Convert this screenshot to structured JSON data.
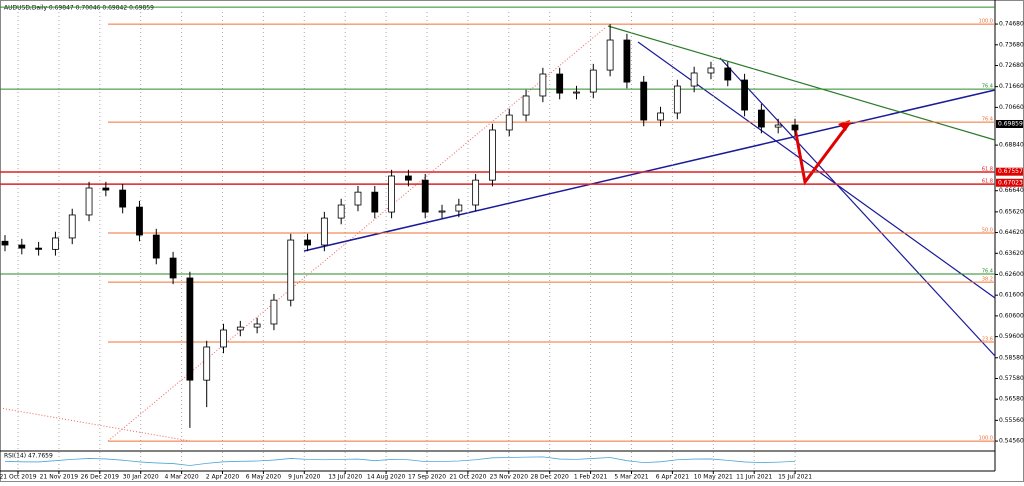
{
  "chart_data": {
    "type": "candlestick",
    "title": "AUDUSD,Daily 0.69847 0.70046 0.69842 0.69859",
    "categories": [
      "21 Oct 2019",
      "21 Nov 2019",
      "26 Dec 2019",
      "30 Jan 2020",
      "4 Mar 2020",
      "2 Apr 2020",
      "6 May 2020",
      "9 Jun 2020",
      "13 Jul 2020",
      "14 Aug 2020",
      "17 Sep 2020",
      "21 Oct 2020",
      "23 Nov 2020",
      "28 Dec 2020",
      "1 Feb 2021",
      "5 Mar 2021",
      "6 Apr 2021",
      "10 May 2021",
      "11 Jun 2021",
      "15 Jul 2021"
    ],
    "series": {
      "open": [
        0.642,
        0.6402,
        0.6387,
        0.6381,
        0.6436,
        0.6547,
        0.6677,
        0.6667,
        0.6585,
        0.645,
        0.6339,
        0.6243,
        0.575,
        0.591,
        0.5992,
        0.6006,
        0.6021,
        0.6136,
        0.6426,
        0.6402,
        0.6532,
        0.6595,
        0.6657,
        0.6561,
        0.6735,
        0.6715,
        0.6561,
        0.6566,
        0.6595,
        0.6715,
        0.6957,
        0.7029,
        0.7121,
        0.7227,
        0.7135,
        0.714,
        0.7246,
        0.7391,
        0.7188,
        0.7005,
        0.7039,
        0.7169,
        0.7232,
        0.7256,
        0.7198,
        0.7053,
        0.6971,
        0.6981
      ],
      "high": [
        0.645,
        0.6432,
        0.6417,
        0.6466,
        0.6577,
        0.6707,
        0.6707,
        0.6697,
        0.6615,
        0.648,
        0.6369,
        0.6273,
        0.594,
        0.6022,
        0.6036,
        0.6051,
        0.6166,
        0.6456,
        0.6456,
        0.6562,
        0.6625,
        0.6687,
        0.6687,
        0.6765,
        0.6765,
        0.6745,
        0.6596,
        0.6625,
        0.6745,
        0.6987,
        0.7059,
        0.7151,
        0.7257,
        0.7257,
        0.717,
        0.7276,
        0.7468,
        0.7421,
        0.7218,
        0.7069,
        0.7199,
        0.7262,
        0.7286,
        0.7286,
        0.7228,
        0.7083,
        0.7011,
        0.7011
      ],
      "low": [
        0.6372,
        0.6357,
        0.6351,
        0.6351,
        0.6406,
        0.6517,
        0.6637,
        0.6555,
        0.642,
        0.6309,
        0.6213,
        0.552,
        0.562,
        0.588,
        0.5962,
        0.5976,
        0.5991,
        0.6106,
        0.6372,
        0.6372,
        0.6502,
        0.6565,
        0.6531,
        0.6531,
        0.6685,
        0.6531,
        0.6531,
        0.6536,
        0.6565,
        0.6685,
        0.6927,
        0.6999,
        0.7091,
        0.7105,
        0.7105,
        0.711,
        0.7216,
        0.7158,
        0.6975,
        0.6975,
        0.7009,
        0.7139,
        0.7202,
        0.7168,
        0.7023,
        0.6941,
        0.6941,
        0.6927
      ],
      "close": [
        0.6402,
        0.6387,
        0.6381,
        0.6436,
        0.6547,
        0.6677,
        0.6667,
        0.6585,
        0.645,
        0.6339,
        0.6243,
        0.575,
        0.591,
        0.5992,
        0.6006,
        0.6021,
        0.6136,
        0.6426,
        0.6402,
        0.6532,
        0.6595,
        0.6657,
        0.6561,
        0.6735,
        0.6715,
        0.6561,
        0.6566,
        0.6595,
        0.6715,
        0.6957,
        0.7029,
        0.7121,
        0.7227,
        0.7135,
        0.714,
        0.7246,
        0.7391,
        0.7188,
        0.7005,
        0.7039,
        0.7169,
        0.7232,
        0.7256,
        0.7198,
        0.7053,
        0.6971,
        0.6981,
        0.6957
      ]
    },
    "ylim": [
      0.5413,
      0.756
    ],
    "yticks": [
      {
        "value": 0.5456,
        "label": "0.54560"
      },
      {
        "value": 0.5556,
        "label": "0.55560"
      },
      {
        "value": 0.5658,
        "label": "0.56580"
      },
      {
        "value": 0.5758,
        "label": "0.57580"
      },
      {
        "value": 0.5858,
        "label": "0.58580"
      },
      {
        "value": 0.596,
        "label": "0.59600"
      },
      {
        "value": 0.606,
        "label": "0.60600"
      },
      {
        "value": 0.616,
        "label": "0.61600"
      },
      {
        "value": 0.626,
        "label": "0.62600"
      },
      {
        "value": 0.6362,
        "label": "0.63620"
      },
      {
        "value": 0.6462,
        "label": "0.64620"
      },
      {
        "value": 0.6562,
        "label": "0.65620"
      },
      {
        "value": 0.6664,
        "label": "0.66640"
      },
      {
        "value": 0.6884,
        "label": "0.68840"
      },
      {
        "value": 0.7066,
        "label": "0.70660"
      },
      {
        "value": 0.7166,
        "label": "0.71660"
      },
      {
        "value": 0.7268,
        "label": "0.72680"
      },
      {
        "value": 0.7368,
        "label": "0.73680"
      },
      {
        "value": 0.7468,
        "label": "0.74680"
      }
    ],
    "levels": [
      {
        "value": 0.7468,
        "label": "100.0",
        "color": "#f07030"
      },
      {
        "value": 0.6995,
        "label": "76.4",
        "color": "#f07030"
      },
      {
        "value": 0.6754,
        "label": "61.8",
        "color": "#e02020"
      },
      {
        "value": 0.6696,
        "label": "61.8",
        "color": "#e02020"
      },
      {
        "value": 0.646,
        "label": "50.0",
        "color": "#f07030"
      },
      {
        "value": 0.6223,
        "label": "38.2",
        "color": "#f07030"
      },
      {
        "value": 0.5934,
        "label": "23.6",
        "color": "#f07030"
      },
      {
        "value": 0.5456,
        "label": "100.0",
        "color": "#f07030"
      },
      {
        "value": 0.755,
        "color": "#2a8a2a"
      },
      {
        "value": 0.7154,
        "label": "76.4",
        "color": "#2a8a2a"
      },
      {
        "value": 0.6262,
        "label": "76.4",
        "color": "#2a8a2a"
      }
    ],
    "price_markers": [
      {
        "value": 0.69859,
        "label": "0.69859",
        "color": "#000000"
      },
      {
        "value": 0.67557,
        "label": "0.67557",
        "color": "#e00000"
      },
      {
        "value": 0.67023,
        "label": "0.67023",
        "color": "#e00000"
      }
    ],
    "rsi": {
      "label": "RSI(14) 47.7659",
      "ylim": [
        0,
        100
      ],
      "color": "#4da6d8",
      "values": [
        48,
        45,
        44,
        52,
        60,
        66,
        63,
        55,
        44,
        38,
        34,
        22,
        35,
        45,
        48,
        50,
        56,
        66,
        60,
        58,
        60,
        62,
        52,
        60,
        58,
        46,
        47,
        50,
        58,
        70,
        72,
        74,
        76,
        62,
        60,
        66,
        72,
        52,
        40,
        45,
        58,
        62,
        63,
        54,
        44,
        40,
        43,
        47.7659
      ]
    }
  }
}
